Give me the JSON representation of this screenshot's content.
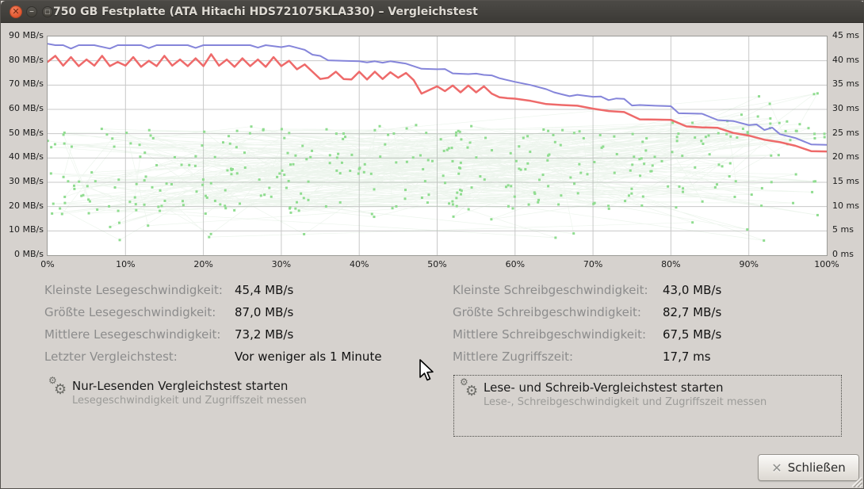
{
  "window": {
    "title": "750 GB Festplatte (ATA Hitachi HDS721075KLA330) – Vergleichstest",
    "controls": {
      "close": "close-window",
      "minimize": "minimize-window",
      "maximize": "maximize-window"
    }
  },
  "chart_data": {
    "type": "line",
    "title": "",
    "x_axis": {
      "range": [
        0,
        100
      ],
      "ticks": [
        "0%",
        "10%",
        "20%",
        "30%",
        "40%",
        "50%",
        "60%",
        "70%",
        "80%",
        "90%",
        "100%"
      ],
      "grid": true
    },
    "y_axis_left": {
      "unit": "MB/s",
      "range": [
        0,
        90
      ],
      "ticks": [
        "90 MB/s",
        "80 MB/s",
        "70 MB/s",
        "60 MB/s",
        "50 MB/s",
        "40 MB/s",
        "30 MB/s",
        "20 MB/s",
        "10 MB/s",
        "0 MB/s"
      ],
      "grid": true
    },
    "y_axis_right": {
      "unit": "ms",
      "range": [
        0,
        45
      ],
      "ticks": [
        "45 ms",
        "40 ms",
        "35 ms",
        "30 ms",
        "25 ms",
        "20 ms",
        "15 ms",
        "10 ms",
        "5 ms",
        "0 ms"
      ]
    },
    "grid_color": "#c8c8c8",
    "series": [
      {
        "name": "Lesegeschwindigkeit",
        "axis": "left",
        "color": "#8585da",
        "width": 2,
        "points": [
          [
            0,
            87
          ],
          [
            1,
            86.4
          ],
          [
            2,
            86.4
          ],
          [
            3,
            85
          ],
          [
            4,
            86.4
          ],
          [
            6,
            86.4
          ],
          [
            8,
            85
          ],
          [
            9,
            86.4
          ],
          [
            12,
            86.4
          ],
          [
            13,
            85.2
          ],
          [
            14,
            86.4
          ],
          [
            18,
            86.4
          ],
          [
            19,
            85.3
          ],
          [
            20,
            86.4
          ],
          [
            24,
            86.4
          ],
          [
            26,
            86.4
          ],
          [
            27,
            85.4
          ],
          [
            28,
            86.4
          ],
          [
            30,
            85.6
          ],
          [
            31,
            86.2
          ],
          [
            33,
            84.5
          ],
          [
            34,
            82.5
          ],
          [
            35,
            82
          ],
          [
            36,
            80.2
          ],
          [
            38,
            80
          ],
          [
            40,
            79.8
          ],
          [
            41,
            79.3
          ],
          [
            42,
            79.8
          ],
          [
            43,
            79.2
          ],
          [
            44,
            79.8
          ],
          [
            46,
            78.8
          ],
          [
            48,
            76.7
          ],
          [
            50,
            76.5
          ],
          [
            51,
            76.6
          ],
          [
            52,
            74.8
          ],
          [
            54,
            74.5
          ],
          [
            55,
            74.7
          ],
          [
            56,
            74.2
          ],
          [
            57,
            74
          ],
          [
            58,
            72.8
          ],
          [
            60,
            71.3
          ],
          [
            62,
            70
          ],
          [
            64,
            68.3
          ],
          [
            65,
            67
          ],
          [
            66,
            66.2
          ],
          [
            67,
            65.4
          ],
          [
            68,
            66
          ],
          [
            70,
            65.2
          ],
          [
            71,
            65.3
          ],
          [
            72,
            63.8
          ],
          [
            73,
            64.5
          ],
          [
            74,
            64.3
          ],
          [
            75,
            61.6
          ],
          [
            76,
            61.8
          ],
          [
            78,
            61.5
          ],
          [
            80,
            61.3
          ],
          [
            81,
            58.4
          ],
          [
            84,
            58.2
          ],
          [
            86,
            55.6
          ],
          [
            88,
            55.2
          ],
          [
            90,
            53.5
          ],
          [
            91,
            53.8
          ],
          [
            92,
            51.5
          ],
          [
            93,
            52.5
          ],
          [
            94,
            49.8
          ],
          [
            96,
            48.2
          ],
          [
            98,
            45.6
          ],
          [
            100,
            45.4
          ]
        ]
      },
      {
        "name": "Schreibgeschwindigkeit",
        "axis": "left",
        "color": "#ee6a6a",
        "width": 2.5,
        "points": [
          [
            0,
            79.5
          ],
          [
            1,
            82
          ],
          [
            2,
            78
          ],
          [
            3,
            81.5
          ],
          [
            4,
            77.8
          ],
          [
            5,
            80.5
          ],
          [
            6,
            78
          ],
          [
            7,
            82
          ],
          [
            8,
            77.8
          ],
          [
            9,
            79.5
          ],
          [
            10,
            78
          ],
          [
            11,
            81.5
          ],
          [
            12,
            77.5
          ],
          [
            13,
            80
          ],
          [
            14,
            77.8
          ],
          [
            15,
            82
          ],
          [
            16,
            78
          ],
          [
            17,
            80.5
          ],
          [
            18,
            77.8
          ],
          [
            19,
            81
          ],
          [
            20,
            77.8
          ],
          [
            21,
            82.7
          ],
          [
            22,
            78
          ],
          [
            23,
            80.5
          ],
          [
            24,
            77.5
          ],
          [
            25,
            81
          ],
          [
            26,
            77.8
          ],
          [
            27,
            80.5
          ],
          [
            28,
            77.5
          ],
          [
            29,
            81.5
          ],
          [
            30,
            77.8
          ],
          [
            31,
            80
          ],
          [
            32,
            76.5
          ],
          [
            33,
            78.5
          ],
          [
            34,
            75.5
          ],
          [
            35,
            72.5
          ],
          [
            36,
            73
          ],
          [
            37,
            75.5
          ],
          [
            38,
            72.5
          ],
          [
            39,
            72.3
          ],
          [
            40,
            75.5
          ],
          [
            41,
            72.3
          ],
          [
            42,
            75.5
          ],
          [
            43,
            72.5
          ],
          [
            44,
            75.3
          ],
          [
            45,
            73
          ],
          [
            46,
            75
          ],
          [
            47,
            72
          ],
          [
            48,
            66.5
          ],
          [
            49,
            68
          ],
          [
            50,
            69.5
          ],
          [
            51,
            67.5
          ],
          [
            52,
            69.8
          ],
          [
            53,
            67
          ],
          [
            54,
            69.8
          ],
          [
            55,
            67
          ],
          [
            56,
            69.5
          ],
          [
            57,
            66.5
          ],
          [
            58,
            65
          ],
          [
            59,
            64.6
          ],
          [
            60,
            64.4
          ],
          [
            62,
            63.5
          ],
          [
            64,
            62.2
          ],
          [
            66,
            61.8
          ],
          [
            68,
            61.5
          ],
          [
            70,
            60.3
          ],
          [
            72,
            59.3
          ],
          [
            74,
            58.9
          ],
          [
            76,
            55.9
          ],
          [
            78,
            55.8
          ],
          [
            80,
            55.7
          ],
          [
            82,
            53
          ],
          [
            84,
            52.6
          ],
          [
            86,
            52.4
          ],
          [
            88,
            50.3
          ],
          [
            90,
            49.2
          ],
          [
            92,
            47.5
          ],
          [
            94,
            46.5
          ],
          [
            96,
            45
          ],
          [
            98,
            42.8
          ],
          [
            100,
            42.7
          ]
        ]
      },
      {
        "name": "Zugriffszeit",
        "axis": "right",
        "type": "scatter",
        "dot_color": "#8fdc8f",
        "link_color": "rgba(140,195,140,0.16)",
        "generator": {
          "seed": 20,
          "count": 380,
          "band_ms": [
            9,
            27
          ],
          "low_outlier_ms": [
            2.5,
            8.5
          ],
          "low_outlier_rate": 0.05,
          "high_cluster_ms": [
            24,
            33.5
          ],
          "high_cluster_after_percent": 85,
          "high_cluster_rate": 0.35,
          "trend_ms_per_percent": 0.02
        }
      }
    ]
  },
  "stats": {
    "left": [
      {
        "label": "Kleinste Lesegeschwindigkeit:",
        "value": "45,4 MB/s"
      },
      {
        "label": "Größte Lesegeschwindigkeit:",
        "value": "87,0 MB/s"
      },
      {
        "label": "Mittlere Lesegeschwindigkeit:",
        "value": "73,2 MB/s"
      },
      {
        "label": "Letzter Vergleichstest:",
        "value": "Vor weniger als 1 Minute"
      }
    ],
    "right": [
      {
        "label": "Kleinste Schreibgeschwindigkeit:",
        "value": "43,0 MB/s"
      },
      {
        "label": "Größte Schreibgeschwindigkeit:",
        "value": "82,7 MB/s"
      },
      {
        "label": "Mittlere Schreibgeschwindigkeit:",
        "value": "67,5 MB/s"
      },
      {
        "label": "Mittlere Zugriffszeit:",
        "value": "17,7 ms"
      }
    ]
  },
  "actions": {
    "read_only": {
      "title": "Nur-Lesenden Vergleichstest starten",
      "subtitle": "Lesegeschwindigkeit und Zugriffszeit messen"
    },
    "read_write": {
      "title": "Lese- und Schreib-Vergleichstest starten",
      "subtitle": "Lese-, Schreibgeschwindigkeit und Zugriffszeit messen"
    }
  },
  "close_button": {
    "label": "Schließen"
  }
}
